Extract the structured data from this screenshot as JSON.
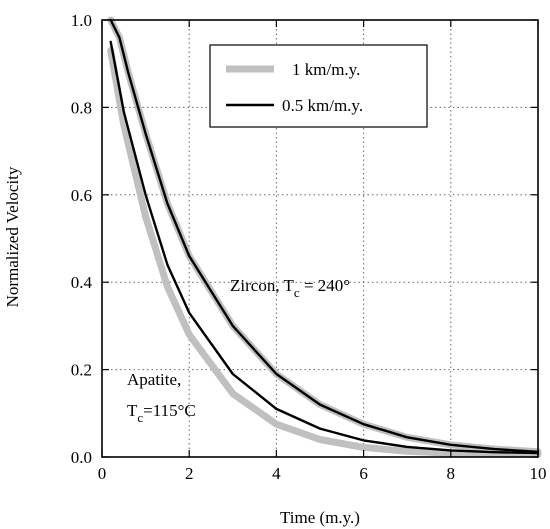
{
  "chart_data": {
    "type": "line",
    "title": "",
    "xlabel": "Time (m.y.)",
    "ylabel": "Normalized Velocity",
    "xlim": [
      0,
      10
    ],
    "ylim": [
      0.0,
      1.0
    ],
    "xticks": [
      0,
      2,
      4,
      6,
      8,
      10
    ],
    "yticks": [
      0.0,
      0.2,
      0.4,
      0.6,
      0.8,
      1.0
    ],
    "xtick_labels": [
      "0",
      "2",
      "4",
      "6",
      "8",
      "10"
    ],
    "ytick_labels": [
      "0.0",
      "0.2",
      "0.4",
      "0.6",
      "0.8",
      "1.0"
    ],
    "grid": true,
    "legend_position": "top-right",
    "legend": [
      {
        "label": "1 km/m.y.",
        "color": "#c0c0c0",
        "style": "thick"
      },
      {
        "label": "0.5 km/m.y.",
        "color": "#000000",
        "style": "thin"
      }
    ],
    "series": [
      {
        "name": "1 km/m.y.",
        "curve": "Zircon",
        "color": "#c0c0c0",
        "x": [
          0.2,
          0.4,
          0.6,
          1.0,
          1.5,
          2.0,
          3.0,
          4.0,
          5.0,
          6.0,
          7.0,
          8.0,
          9.0,
          10.0
        ],
        "y": [
          1.0,
          0.96,
          0.88,
          0.74,
          0.58,
          0.46,
          0.3,
          0.19,
          0.12,
          0.075,
          0.045,
          0.028,
          0.018,
          0.012
        ]
      },
      {
        "name": "0.5 km/m.y.",
        "curve": "Zircon",
        "color": "#000000",
        "x": [
          0.2,
          0.4,
          0.6,
          1.0,
          1.5,
          2.0,
          3.0,
          4.0,
          5.0,
          6.0,
          7.0,
          8.0,
          9.0,
          10.0
        ],
        "y": [
          1.0,
          0.96,
          0.88,
          0.74,
          0.58,
          0.46,
          0.3,
          0.19,
          0.12,
          0.075,
          0.045,
          0.028,
          0.018,
          0.012
        ]
      },
      {
        "name": "1 km/m.y.",
        "curve": "Apatite",
        "color": "#c0c0c0",
        "x": [
          0.2,
          0.5,
          1.0,
          1.5,
          2.0,
          3.0,
          4.0,
          5.0,
          6.0,
          7.0,
          8.0,
          9.0,
          10.0
        ],
        "y": [
          0.93,
          0.76,
          0.55,
          0.39,
          0.28,
          0.145,
          0.075,
          0.04,
          0.022,
          0.013,
          0.009,
          0.007,
          0.006
        ]
      },
      {
        "name": "0.5 km/m.y.",
        "curve": "Apatite",
        "color": "#000000",
        "x": [
          0.2,
          0.5,
          1.0,
          1.5,
          2.0,
          3.0,
          4.0,
          5.0,
          6.0,
          7.0,
          8.0,
          9.0,
          10.0
        ],
        "y": [
          0.95,
          0.79,
          0.6,
          0.44,
          0.33,
          0.19,
          0.11,
          0.065,
          0.038,
          0.023,
          0.015,
          0.011,
          0.009
        ]
      }
    ],
    "annotations": [
      {
        "text": "Zircon, T",
        "sub": "c",
        "after": " = 240°",
        "x": 3.0,
        "y": 0.4
      },
      {
        "text": "Apatite,",
        "x": 0.55,
        "y": 0.175
      },
      {
        "text": "T",
        "sub": "c",
        "after": "=115°C",
        "x": 0.55,
        "y": 0.1
      }
    ]
  }
}
